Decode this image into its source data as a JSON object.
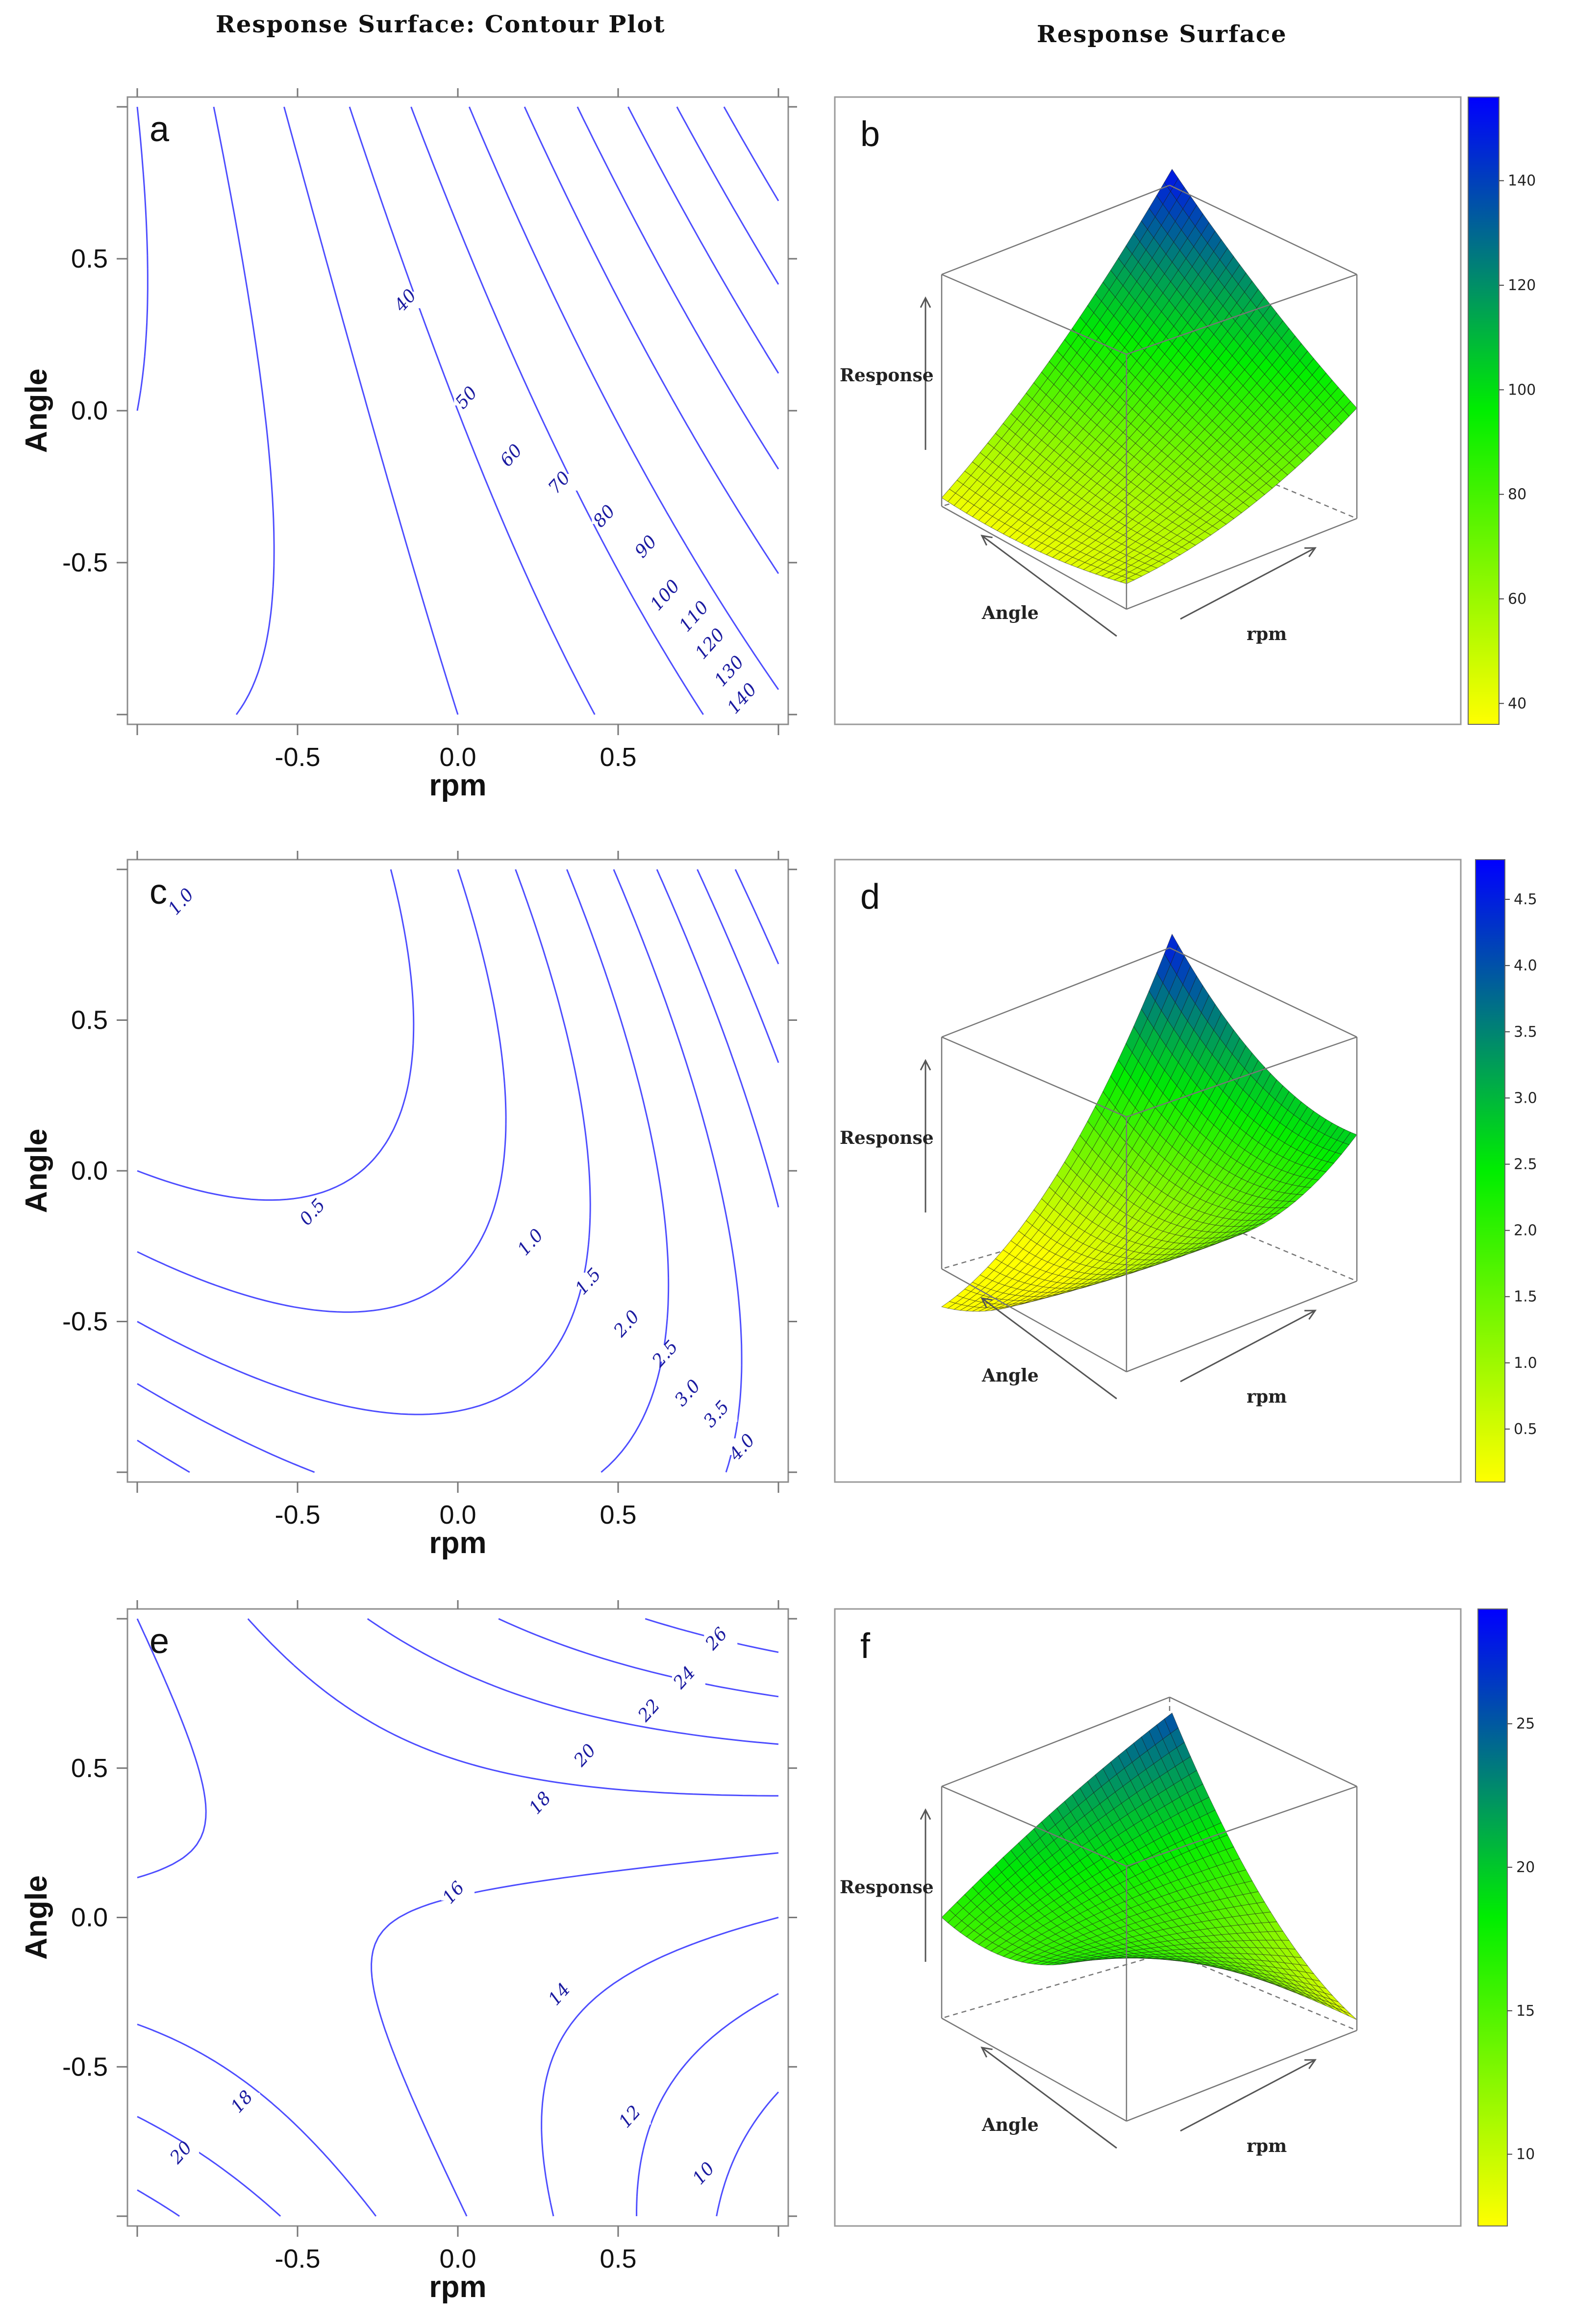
{
  "column_titles": {
    "left": "Response Surface: Contour Plot",
    "right": "Response Surface"
  },
  "colors": {
    "contour": "#4d4dff",
    "label": "#1a1aa0",
    "cb_low": "#ffff00",
    "cb_mid": "#00ee00",
    "cb_high": "#0000ff"
  },
  "chart_data": [
    {
      "panel": "a",
      "type": "contour",
      "title": "",
      "xlabel": "rpm",
      "ylabel": "Angle",
      "xlim": [
        -1,
        1
      ],
      "ylim": [
        -1,
        1
      ],
      "xticks": [
        "-0.5",
        "0.0",
        "0.5"
      ],
      "yticks": [
        "0.5",
        "0.0",
        "-0.5"
      ],
      "model": {
        "c": 70,
        "x": 38,
        "y": 14,
        "xx": 8,
        "yy": 4,
        "xy": 18
      },
      "levels": [
        {
          "value": 40,
          "label": "40",
          "at": [
            -0.15,
            0.35
          ]
        },
        {
          "value": 50,
          "label": "50",
          "at": [
            0.04,
            0.03
          ]
        },
        {
          "value": 60,
          "label": "60",
          "at": [
            0.18,
            -0.16
          ]
        },
        {
          "value": 70,
          "label": "70",
          "at": [
            0.33,
            -0.25
          ]
        },
        {
          "value": 80,
          "label": "80",
          "at": [
            0.47,
            -0.36
          ]
        },
        {
          "value": 90,
          "label": "90",
          "at": [
            0.6,
            -0.46
          ]
        },
        {
          "value": 100,
          "label": "100",
          "at": [
            0.66,
            -0.62
          ]
        },
        {
          "value": 110,
          "label": "110",
          "at": [
            0.75,
            -0.69
          ]
        },
        {
          "value": 120,
          "label": "120",
          "at": [
            0.8,
            -0.78
          ]
        },
        {
          "value": 130,
          "label": "130",
          "at": [
            0.86,
            -0.87
          ]
        },
        {
          "value": 140,
          "label": "140",
          "at": [
            0.9,
            -0.96
          ]
        }
      ]
    },
    {
      "panel": "c",
      "type": "contour",
      "title": "",
      "xlabel": "rpm",
      "ylabel": "Angle",
      "xlim": [
        -1,
        1
      ],
      "ylim": [
        -1,
        1
      ],
      "xticks": [
        "-0.5",
        "0.0",
        "0.5"
      ],
      "yticks": [
        "0.5",
        "0.0",
        "-0.5"
      ],
      "model": {
        "c": 0.8,
        "x": 1.3,
        "y": -0.4,
        "xx": 1.0,
        "yy": 0.6,
        "xy": 1.3
      },
      "levels": [
        {
          "value": 0.5,
          "label": "0.5",
          "at": [
            -0.44,
            -0.15
          ]
        },
        {
          "value": 1.0,
          "label": "1.0",
          "at": [
            0.24,
            -0.25
          ]
        },
        {
          "value": 1.5,
          "label": "1.5",
          "at": [
            0.42,
            -0.38
          ]
        },
        {
          "value": 2.0,
          "label": "2.0",
          "at": [
            0.54,
            -0.52
          ]
        },
        {
          "value": 2.5,
          "label": "2.5",
          "at": [
            0.66,
            -0.62
          ]
        },
        {
          "value": 3.0,
          "label": "3.0",
          "at": [
            0.73,
            -0.75
          ]
        },
        {
          "value": 3.5,
          "label": "3.5",
          "at": [
            0.82,
            -0.82
          ]
        },
        {
          "value": 4.0,
          "label": "4.0",
          "at": [
            0.9,
            -0.93
          ]
        }
      ],
      "extra_labels": [
        {
          "label": "1.0",
          "at": [
            -0.85,
            0.88
          ]
        }
      ]
    },
    {
      "panel": "e",
      "type": "contour",
      "title": "",
      "xlabel": "rpm",
      "ylabel": "Angle",
      "xlim": [
        -1,
        1
      ],
      "ylim": [
        -1,
        1
      ],
      "xticks": [
        "-0.5",
        "0.0",
        "0.5"
      ],
      "yticks": [
        "0.5",
        "0.0",
        "-0.5"
      ],
      "model": {
        "c": 15.8,
        "x": -1.2,
        "y": 2.6,
        "xx": -0.6,
        "yy": 3.0,
        "xy": 6.0
      },
      "levels": [
        {
          "value": 10,
          "label": "10",
          "at": [
            0.78,
            -0.87
          ]
        },
        {
          "value": 12,
          "label": "12",
          "at": [
            0.55,
            -0.68
          ]
        },
        {
          "value": 14,
          "label": "14",
          "at": [
            0.33,
            -0.27
          ]
        },
        {
          "value": 16,
          "label": "16",
          "at": [
            0.0,
            0.07
          ]
        },
        {
          "value": 18,
          "label": "18",
          "at": [
            0.27,
            0.37
          ]
        },
        {
          "value": 20,
          "label": "20",
          "at": [
            0.41,
            0.53
          ]
        },
        {
          "value": 22,
          "label": "22",
          "at": [
            0.61,
            0.68
          ]
        },
        {
          "value": 24,
          "label": "24",
          "at": [
            0.72,
            0.79
          ]
        },
        {
          "value": 26,
          "label": "26",
          "at": [
            0.82,
            0.92
          ]
        }
      ],
      "extra_labels": [
        {
          "label": "18",
          "at": [
            -0.66,
            -0.63
          ]
        },
        {
          "label": "20",
          "at": [
            -0.85,
            -0.8
          ]
        }
      ]
    },
    {
      "panel": "b",
      "type": "surface3d",
      "axis_labels": {
        "z": "Response",
        "x": "rpm",
        "y": "Angle"
      },
      "colorbar": {
        "min": 36,
        "max": 156,
        "ticks": [
          40,
          60,
          80,
          100,
          120,
          140
        ]
      },
      "model": {
        "c": 70,
        "x": 38,
        "y": 14,
        "xx": 8,
        "yy": 4,
        "xy": 18
      }
    },
    {
      "panel": "d",
      "type": "surface3d",
      "axis_labels": {
        "z": "Response",
        "x": "rpm",
        "y": "Angle"
      },
      "colorbar": {
        "min": 0.1,
        "max": 4.8,
        "ticks": [
          "0.5",
          "1.0",
          "1.5",
          "2.0",
          "2.5",
          "3.0",
          "3.5",
          "4.0",
          "4.5"
        ]
      },
      "model": {
        "c": 0.8,
        "x": 1.3,
        "y": -0.4,
        "xx": 1.0,
        "yy": 0.6,
        "xy": 1.3
      }
    },
    {
      "panel": "f",
      "type": "surface3d",
      "axis_labels": {
        "z": "Response",
        "x": "rpm",
        "y": "Angle"
      },
      "colorbar": {
        "min": 7.5,
        "max": 29,
        "ticks": [
          10,
          15,
          20,
          25
        ]
      },
      "model": {
        "c": 15.8,
        "x": -1.2,
        "y": 2.6,
        "xx": -0.6,
        "yy": 3.0,
        "xy": 6.0
      }
    }
  ]
}
